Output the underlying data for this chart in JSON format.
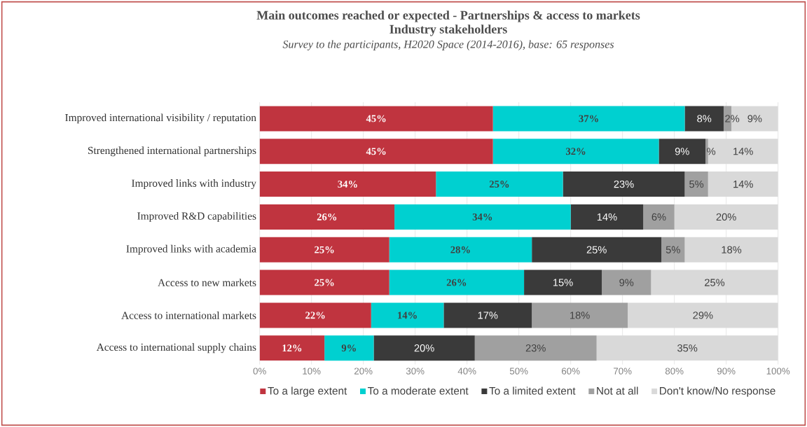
{
  "chart_data": {
    "type": "bar",
    "orientation": "horizontal",
    "stacked": true,
    "title": "Main outcomes reached or expected - Partnerships & access to markets",
    "subtitle": "Industry stakeholders",
    "annotations": [
      "Survey to the participants, H2020 Space (2014-2016), base: 65 responses"
    ],
    "categories": [
      "Improved international visibility / reputation",
      "Strengthened international partnerships",
      "Improved links with industry",
      "Improved R&D capabilities",
      "Improved links with academia",
      "Access to new markets",
      "Access to international markets",
      "Access to international supply chains"
    ],
    "series": [
      {
        "name": "To a large extent",
        "color": "#c0343f",
        "values": [
          45,
          45,
          34,
          26,
          25,
          25,
          21.5,
          12.5
        ],
        "value_labels": [
          "45%",
          "45%",
          "34%",
          "26%",
          "25%",
          "25%",
          "22%",
          "12%"
        ]
      },
      {
        "name": "To a moderate extent",
        "color": "#00d0d0",
        "values": [
          37,
          32,
          24.5,
          34,
          27.5,
          26,
          14,
          9.5
        ],
        "value_labels": [
          "37%",
          "32%",
          "25%",
          "34%",
          "28%",
          "26%",
          "14%",
          "9%"
        ]
      },
      {
        "name": "To a limited extent",
        "color": "#3a3a3a",
        "values": [
          7.5,
          9,
          23.5,
          14,
          25,
          15,
          17,
          19.5
        ],
        "value_labels": [
          "8%",
          "9%",
          "23%",
          "14%",
          "25%",
          "15%",
          "17%",
          "20%"
        ]
      },
      {
        "name": "Not at all",
        "color": "#a0a0a0",
        "values": [
          1.5,
          0.5,
          4.5,
          6,
          4.5,
          9.5,
          18.5,
          23.5
        ],
        "value_labels": [
          "2%",
          "%",
          "5%",
          "6%",
          "5%",
          "9%",
          "18%",
          "23%"
        ]
      },
      {
        "name": "Don't know/No response",
        "color": "#d9d9d9",
        "values": [
          9,
          13.5,
          13.5,
          20,
          18,
          24.5,
          29,
          35
        ],
        "value_labels": [
          "9%",
          "14%",
          "14%",
          "20%",
          "18%",
          "25%",
          "29%",
          "35%"
        ]
      }
    ],
    "xlim": [
      0,
      100
    ],
    "xticks": [
      {
        "value": 0,
        "label": "0%"
      },
      {
        "value": 10,
        "label": "10%"
      },
      {
        "value": 20,
        "label": "20%"
      },
      {
        "value": 30,
        "label": "30%"
      },
      {
        "value": 40,
        "label": "40%"
      },
      {
        "value": 50,
        "label": "50%"
      },
      {
        "value": 60,
        "label": "60%"
      },
      {
        "value": 70,
        "label": "70%"
      },
      {
        "value": 80,
        "label": "80%"
      },
      {
        "value": 90,
        "label": "90%"
      },
      {
        "value": 100,
        "label": "100%"
      }
    ],
    "grid": "x",
    "legend": "bottom"
  }
}
